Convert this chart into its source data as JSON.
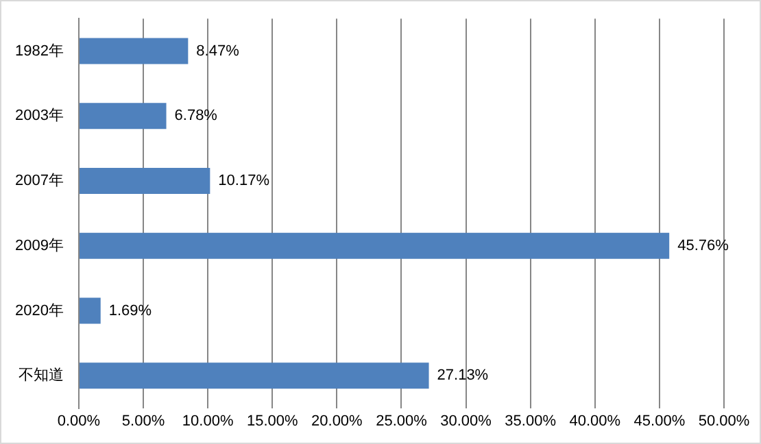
{
  "chart_data": {
    "type": "bar",
    "orientation": "horizontal",
    "categories": [
      "1982年",
      "2003年",
      "2007年",
      "2009年",
      "2020年",
      "不知道"
    ],
    "values": [
      8.47,
      6.78,
      10.17,
      45.76,
      1.69,
      27.13
    ],
    "value_labels": [
      "8.47%",
      "6.78%",
      "10.17%",
      "45.76%",
      "1.69%",
      "27.13%"
    ],
    "color": "#4f81bd",
    "xlim": [
      0,
      50
    ],
    "xticks": [
      {
        "value": 0,
        "label": "0.00%"
      },
      {
        "value": 5,
        "label": "5.00%"
      },
      {
        "value": 10,
        "label": "10.00%"
      },
      {
        "value": 15,
        "label": "15.00%"
      },
      {
        "value": 20,
        "label": "20.00%"
      },
      {
        "value": 25,
        "label": "25.00%"
      },
      {
        "value": 30,
        "label": "30.00%"
      },
      {
        "value": 35,
        "label": "35.00%"
      },
      {
        "value": 40,
        "label": "40.00%"
      },
      {
        "value": 45,
        "label": "45.00%"
      },
      {
        "value": 50,
        "label": "50.00%"
      }
    ],
    "grid": "x",
    "legend": false
  }
}
